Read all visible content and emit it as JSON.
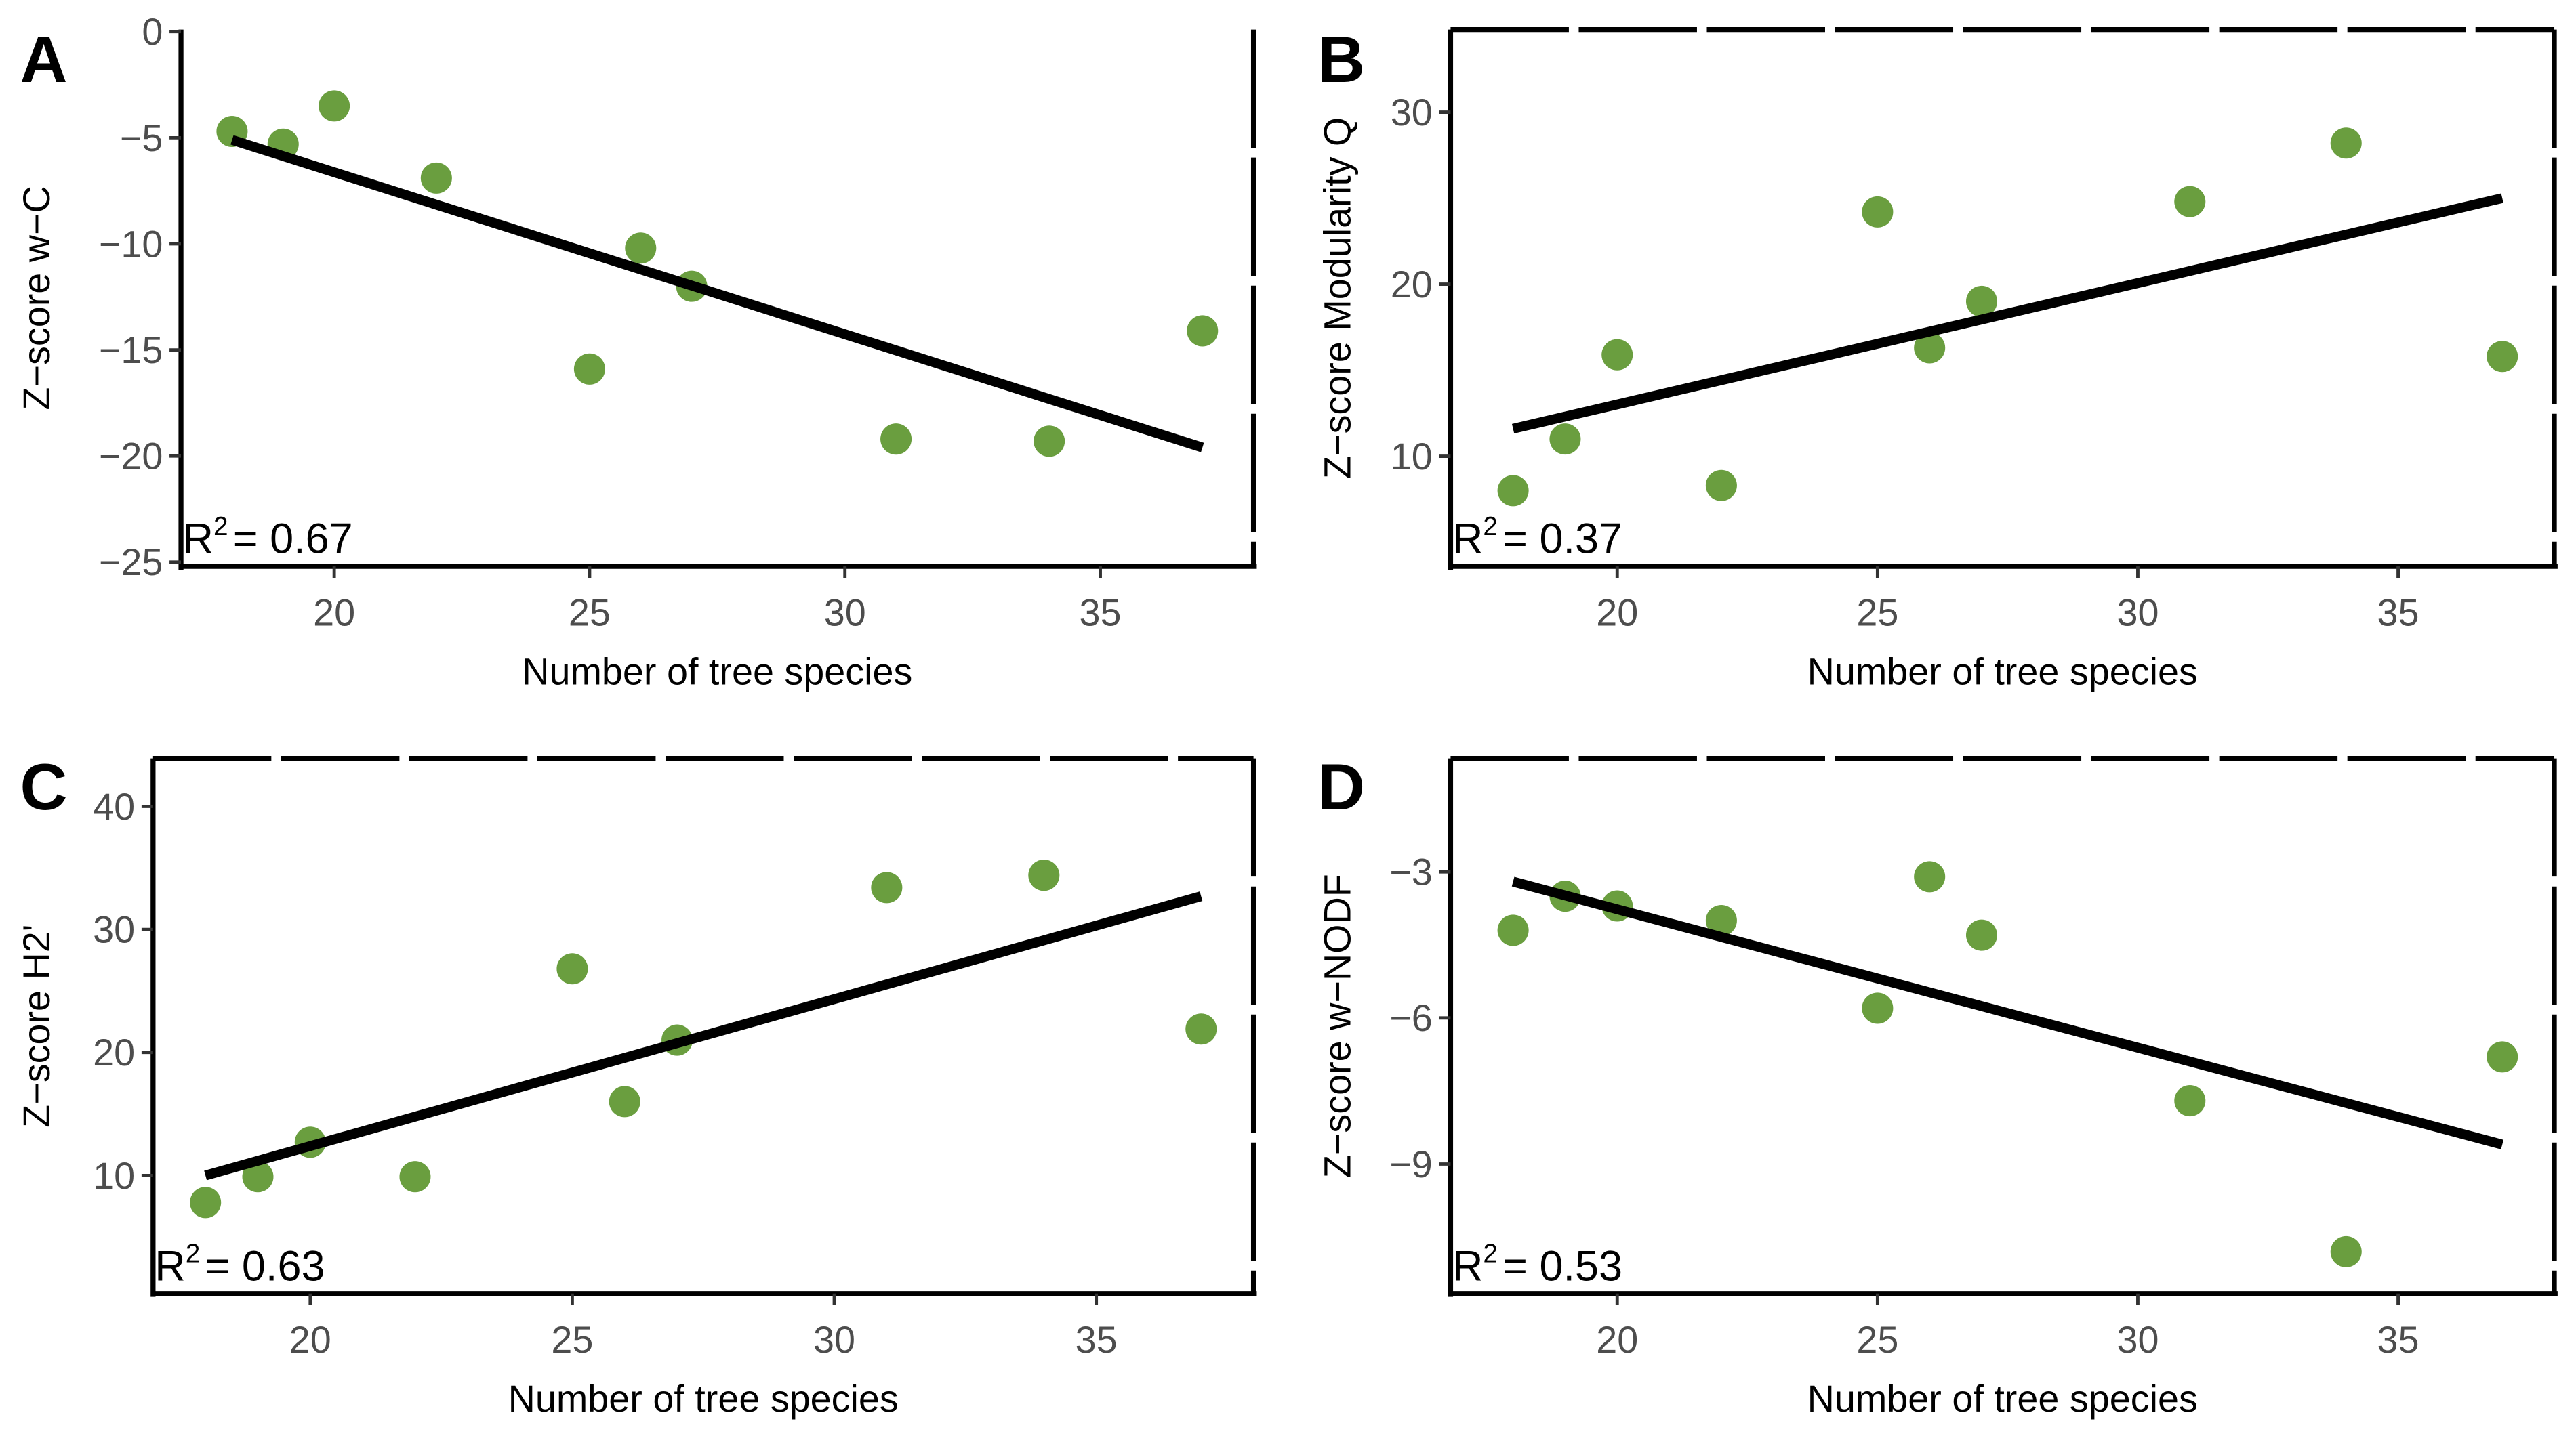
{
  "colors": {
    "point": "#6a9e3f",
    "line": "#000000",
    "tick_text": "#4d4d4d"
  },
  "chart_data": [
    {
      "type": "scatter",
      "panel": "A",
      "xlabel": "Number of tree species",
      "ylabel": "Z−score w−C",
      "xlim": [
        17,
        38
      ],
      "xticks": [
        20,
        25,
        30,
        35
      ],
      "xtick_labels": [
        "20",
        "25",
        "30",
        "35"
      ],
      "ylim": [
        -25.2,
        0.1
      ],
      "yticks": [
        0,
        -5,
        -10,
        -15,
        -20,
        -25
      ],
      "ytick_labels": [
        "0",
        "−5",
        "−10",
        "−15",
        "−20",
        "−25"
      ],
      "x": [
        18,
        19,
        20,
        22,
        25,
        26,
        27,
        31,
        34,
        37
      ],
      "y": [
        -4.7,
        -5.3,
        -3.5,
        -6.9,
        -15.9,
        -10.2,
        -12.0,
        -19.2,
        -19.3,
        -14.1
      ],
      "fit": {
        "x": [
          18,
          37
        ],
        "y": [
          -5.1,
          -19.6
        ]
      },
      "r2_label": "R",
      "r2_sup": "2",
      "r2_value": "= 0.67"
    },
    {
      "type": "scatter",
      "panel": "B",
      "xlabel": "Number of tree species",
      "ylabel": "Z−score Modularity Q",
      "xlim": [
        16.8,
        38
      ],
      "xticks": [
        20,
        25,
        30,
        35
      ],
      "xtick_labels": [
        "20",
        "25",
        "30",
        "35"
      ],
      "ylim": [
        3.6,
        34.8
      ],
      "yticks": [
        10,
        20,
        30
      ],
      "ytick_labels": [
        "10",
        "20",
        "30"
      ],
      "x": [
        18,
        19,
        20,
        22,
        25,
        26,
        27,
        31,
        34,
        37
      ],
      "y": [
        8.0,
        11.0,
        15.9,
        8.3,
        24.2,
        16.3,
        19.0,
        24.8,
        28.2,
        15.8
      ],
      "fit": {
        "x": [
          18,
          37
        ],
        "y": [
          11.6,
          25.0
        ]
      },
      "r2_label": "R",
      "r2_sup": "2",
      "r2_value": "= 0.37"
    },
    {
      "type": "scatter",
      "panel": "C",
      "xlabel": "Number of tree species",
      "ylabel": "Z−score H2'",
      "xlim": [
        17,
        38
      ],
      "xticks": [
        20,
        25,
        30,
        35
      ],
      "xtick_labels": [
        "20",
        "25",
        "30",
        "35"
      ],
      "ylim": [
        0.4,
        43.9
      ],
      "yticks": [
        10,
        20,
        30,
        40
      ],
      "ytick_labels": [
        "10",
        "20",
        "30",
        "40"
      ],
      "x": [
        18,
        19,
        20,
        22,
        25,
        26,
        27,
        31,
        34,
        37
      ],
      "y": [
        7.8,
        9.9,
        12.7,
        9.9,
        26.8,
        16.0,
        21.0,
        33.4,
        34.4,
        21.9
      ],
      "fit": {
        "x": [
          18,
          37
        ],
        "y": [
          10.0,
          32.7
        ]
      },
      "r2_label": "R",
      "r2_sup": "2",
      "r2_value": "= 0.63"
    },
    {
      "type": "scatter",
      "panel": "D",
      "xlabel": "Number of tree species",
      "ylabel": "Z−score w−NODF",
      "xlim": [
        16.8,
        38
      ],
      "xticks": [
        20,
        25,
        30,
        35
      ],
      "xtick_labels": [
        "20",
        "25",
        "30",
        "35"
      ],
      "ylim": [
        -11.66,
        -0.67
      ],
      "yticks": [
        -3,
        -6,
        -9
      ],
      "ytick_labels": [
        "−3",
        "−6",
        "−9"
      ],
      "x": [
        18,
        19,
        20,
        22,
        25,
        26,
        27,
        31,
        34,
        37
      ],
      "y": [
        -4.2,
        -3.5,
        -3.7,
        -4.0,
        -5.8,
        -3.1,
        -4.3,
        -7.7,
        -10.8,
        -6.8
      ],
      "fit": {
        "x": [
          18,
          37
        ],
        "y": [
          -3.2,
          -8.6
        ]
      },
      "r2_label": "R",
      "r2_sup": "2",
      "r2_value": "= 0.53"
    }
  ]
}
